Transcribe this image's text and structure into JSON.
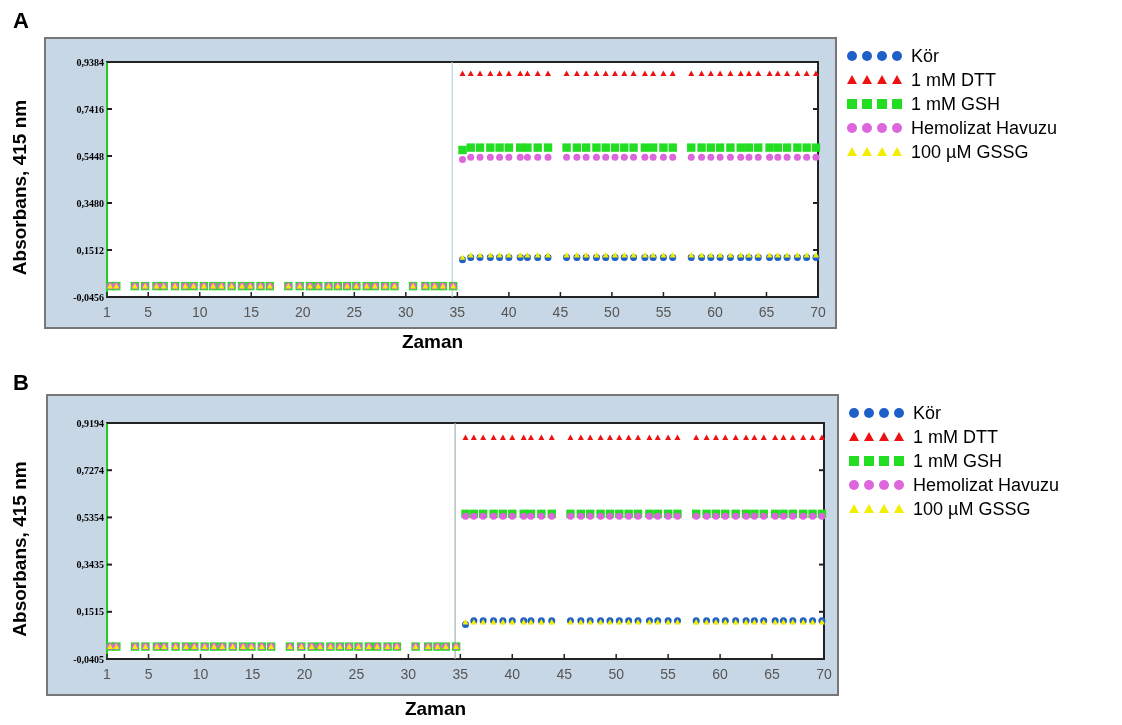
{
  "chart_data": [
    {
      "type": "scatter",
      "title": "A",
      "xlabel": "Zaman",
      "ylabel": "Absorbans, 415 nm",
      "legend": "right",
      "x": [
        1.3,
        1.9,
        3.7,
        4.7,
        5.8,
        6.5,
        7.6,
        8.6,
        9.4,
        10.4,
        11.3,
        12.1,
        13.1,
        14.1,
        14.9,
        15.9,
        16.8,
        18.6,
        19.7,
        20.7,
        21.5,
        22.5,
        23.4,
        24.3,
        25.2,
        26.2,
        27.0,
        28.0,
        28.9,
        30.7,
        31.9,
        32.8,
        33.6,
        34.6,
        35.5,
        36.3,
        37.2,
        38.2,
        39.1,
        40.0,
        41.1,
        41.8,
        42.8,
        43.8,
        45.6,
        46.6,
        47.5,
        48.5,
        49.4,
        50.3,
        51.2,
        52.1,
        53.2,
        54.0,
        55.0,
        55.9,
        57.7,
        58.7,
        59.6,
        60.5,
        61.5,
        62.5,
        63.3,
        64.2,
        65.3,
        66.1,
        67.0,
        68.0,
        68.9,
        69.8
      ],
      "xlim": [
        1,
        70
      ],
      "xticks": [
        1,
        5,
        10,
        15,
        20,
        25,
        30,
        35,
        40,
        45,
        50,
        55,
        60,
        65,
        70
      ],
      "ylim": [
        -0.0456,
        0.9384
      ],
      "yticks": [
        {
          "value": -0.0456,
          "label": "-0,0456"
        },
        {
          "value": 0.1512,
          "label": "0,1512"
        },
        {
          "value": 0.348,
          "label": "0,3480"
        },
        {
          "value": 0.5448,
          "label": "0,5448"
        },
        {
          "value": 0.7416,
          "label": "0,7416"
        },
        {
          "value": 0.9384,
          "label": "0,9384"
        }
      ],
      "ref_lines": [
        {
          "axis": "x",
          "value": 34.5,
          "color": "#b8d4dc"
        }
      ],
      "series": [
        {
          "name": "Kör",
          "color": "#1f5fc8",
          "marker": "circle",
          "values": [
            null,
            null,
            null,
            null,
            null,
            null,
            null,
            null,
            null,
            null,
            null,
            null,
            null,
            null,
            null,
            null,
            null,
            null,
            null,
            null,
            null,
            null,
            null,
            null,
            null,
            null,
            null,
            null,
            null,
            null,
            null,
            null,
            null,
            null,
            0.11,
            0.12,
            0.12,
            0.12,
            0.12,
            0.12,
            0.12,
            0.12,
            0.12,
            0.12,
            0.12,
            0.12,
            0.12,
            0.12,
            0.12,
            0.12,
            0.12,
            0.12,
            0.12,
            0.12,
            0.12,
            0.12,
            0.12,
            0.12,
            0.12,
            0.12,
            0.12,
            0.12,
            0.12,
            0.12,
            0.12,
            0.12,
            0.12,
            0.12,
            0.12,
            0.12
          ]
        },
        {
          "name": "1 mM DTT",
          "color": "#ee1111",
          "marker": "triangle",
          "values": [
            null,
            null,
            null,
            null,
            null,
            null,
            null,
            null,
            null,
            null,
            null,
            null,
            null,
            null,
            null,
            null,
            null,
            null,
            null,
            null,
            null,
            null,
            null,
            null,
            null,
            null,
            null,
            null,
            null,
            null,
            null,
            null,
            null,
            null,
            0.89,
            0.89,
            0.89,
            0.89,
            0.89,
            0.89,
            0.89,
            0.89,
            0.89,
            0.89,
            0.89,
            0.89,
            0.89,
            0.89,
            0.89,
            0.89,
            0.89,
            0.89,
            0.89,
            0.89,
            0.89,
            0.89,
            0.89,
            0.89,
            0.89,
            0.89,
            0.89,
            0.89,
            0.89,
            0.89,
            0.89,
            0.89,
            0.89,
            0.89,
            0.89,
            0.89
          ]
        },
        {
          "name": "1 mM GSH",
          "color": "#22dd22",
          "marker": "square",
          "values": [
            0,
            0,
            0,
            0,
            0,
            0,
            0,
            0,
            0,
            0,
            0,
            0,
            0,
            0,
            0,
            0,
            0,
            0,
            0,
            0,
            0,
            0,
            0,
            0,
            0,
            0,
            0,
            0,
            0,
            0,
            0,
            0,
            0,
            0,
            0.57,
            0.58,
            0.58,
            0.58,
            0.58,
            0.58,
            0.58,
            0.58,
            0.58,
            0.58,
            0.58,
            0.58,
            0.58,
            0.58,
            0.58,
            0.58,
            0.58,
            0.58,
            0.58,
            0.58,
            0.58,
            0.58,
            0.58,
            0.58,
            0.58,
            0.58,
            0.58,
            0.58,
            0.58,
            0.58,
            0.58,
            0.58,
            0.58,
            0.58,
            0.58,
            0.58
          ]
        },
        {
          "name": "Hemolizat Havuzu",
          "color": "#dd66dd",
          "marker": "circle",
          "values": [
            0,
            0,
            0,
            0,
            0,
            0,
            0,
            0,
            0,
            0,
            0,
            0,
            0,
            0,
            0,
            0,
            0,
            0,
            0,
            0,
            0,
            0,
            0,
            0,
            0,
            0,
            0,
            0,
            0,
            0,
            0,
            0,
            0,
            0,
            0.53,
            0.54,
            0.54,
            0.54,
            0.54,
            0.54,
            0.54,
            0.54,
            0.54,
            0.54,
            0.54,
            0.54,
            0.54,
            0.54,
            0.54,
            0.54,
            0.54,
            0.54,
            0.54,
            0.54,
            0.54,
            0.54,
            0.54,
            0.54,
            0.54,
            0.54,
            0.54,
            0.54,
            0.54,
            0.54,
            0.54,
            0.54,
            0.54,
            0.54,
            0.54,
            0.54
          ]
        },
        {
          "name": "100 µM GSSG",
          "color": "#f2ee00",
          "marker": "triangle",
          "values": [
            0,
            0,
            0,
            0,
            0,
            0,
            0,
            0,
            0,
            0,
            0,
            0,
            0,
            0,
            0,
            0,
            0,
            0,
            0,
            0,
            0,
            0,
            0,
            0,
            0,
            0,
            0,
            0,
            0,
            0,
            0,
            0,
            0,
            0,
            0.12,
            0.13,
            0.13,
            0.13,
            0.13,
            0.13,
            0.13,
            0.13,
            0.13,
            0.13,
            0.13,
            0.13,
            0.13,
            0.13,
            0.13,
            0.13,
            0.13,
            0.13,
            0.13,
            0.13,
            0.13,
            0.13,
            0.13,
            0.13,
            0.13,
            0.13,
            0.13,
            0.13,
            0.13,
            0.13,
            0.13,
            0.13,
            0.13,
            0.13,
            0.13,
            0.13
          ]
        }
      ]
    },
    {
      "type": "scatter",
      "title": "B",
      "xlabel": "Zaman",
      "ylabel": "Absorbans, 415 nm",
      "legend": "right",
      "x": [
        1.3,
        1.9,
        3.7,
        4.7,
        5.8,
        6.5,
        7.6,
        8.6,
        9.4,
        10.4,
        11.3,
        12.1,
        13.1,
        14.1,
        14.9,
        15.9,
        16.8,
        18.6,
        19.7,
        20.7,
        21.5,
        22.5,
        23.4,
        24.3,
        25.2,
        26.2,
        27.0,
        28.0,
        28.9,
        30.7,
        31.9,
        32.8,
        33.6,
        34.6,
        35.5,
        36.3,
        37.2,
        38.2,
        39.1,
        40.0,
        41.1,
        41.8,
        42.8,
        43.8,
        45.6,
        46.6,
        47.5,
        48.5,
        49.4,
        50.3,
        51.2,
        52.1,
        53.2,
        54.0,
        55.0,
        55.9,
        57.7,
        58.7,
        59.6,
        60.5,
        61.5,
        62.5,
        63.3,
        64.2,
        65.3,
        66.1,
        67.0,
        68.0,
        68.9,
        69.8
      ],
      "xlim": [
        1,
        70
      ],
      "xticks": [
        1,
        5,
        10,
        15,
        20,
        25,
        30,
        35,
        40,
        45,
        50,
        55,
        60,
        65,
        70
      ],
      "ylim": [
        -0.0405,
        0.9194
      ],
      "yticks": [
        {
          "value": -0.0405,
          "label": "-0,0405"
        },
        {
          "value": 0.1515,
          "label": "0,1515"
        },
        {
          "value": 0.3435,
          "label": "0,3435"
        },
        {
          "value": 0.5354,
          "label": "0,5354"
        },
        {
          "value": 0.7274,
          "label": "0,7274"
        },
        {
          "value": 0.9194,
          "label": "0,9194"
        }
      ],
      "ref_lines": [
        {
          "axis": "x",
          "value": 34.5,
          "color": "#a0b4b4"
        }
      ],
      "series": [
        {
          "name": "Kör",
          "color": "#1f5fc8",
          "marker": "circle",
          "values": [
            null,
            null,
            null,
            null,
            null,
            null,
            null,
            null,
            null,
            null,
            null,
            null,
            null,
            null,
            null,
            null,
            null,
            null,
            null,
            null,
            null,
            null,
            null,
            null,
            null,
            null,
            null,
            null,
            null,
            null,
            null,
            null,
            null,
            null,
            0.1,
            0.115,
            0.115,
            0.115,
            0.115,
            0.115,
            0.115,
            0.115,
            0.115,
            0.115,
            0.115,
            0.115,
            0.115,
            0.115,
            0.115,
            0.115,
            0.115,
            0.115,
            0.115,
            0.115,
            0.115,
            0.115,
            0.115,
            0.115,
            0.115,
            0.115,
            0.115,
            0.115,
            0.115,
            0.115,
            0.115,
            0.115,
            0.115,
            0.115,
            0.115,
            0.115
          ]
        },
        {
          "name": "1 mM DTT",
          "color": "#ee1111",
          "marker": "triangle",
          "values": [
            null,
            null,
            null,
            null,
            null,
            null,
            null,
            null,
            null,
            null,
            null,
            null,
            null,
            null,
            null,
            null,
            null,
            null,
            null,
            null,
            null,
            null,
            null,
            null,
            null,
            null,
            null,
            null,
            null,
            null,
            null,
            null,
            null,
            null,
            0.86,
            0.86,
            0.86,
            0.86,
            0.86,
            0.86,
            0.86,
            0.86,
            0.86,
            0.86,
            0.86,
            0.86,
            0.86,
            0.86,
            0.86,
            0.86,
            0.86,
            0.86,
            0.86,
            0.86,
            0.86,
            0.86,
            0.86,
            0.86,
            0.86,
            0.86,
            0.86,
            0.86,
            0.86,
            0.86,
            0.86,
            0.86,
            0.86,
            0.86,
            0.86,
            0.86
          ]
        },
        {
          "name": "1 mM GSH",
          "color": "#22dd22",
          "marker": "square",
          "values": [
            0.01,
            0.01,
            0.01,
            0.01,
            0.01,
            0.01,
            0.01,
            0.01,
            0.01,
            0.01,
            0.01,
            0.01,
            0.01,
            0.01,
            0.01,
            0.01,
            0.01,
            0.01,
            0.01,
            0.01,
            0.01,
            0.01,
            0.01,
            0.01,
            0.01,
            0.01,
            0.01,
            0.01,
            0.01,
            0.01,
            0.01,
            0.01,
            0.01,
            0.01,
            0.55,
            0.55,
            0.55,
            0.55,
            0.55,
            0.55,
            0.55,
            0.55,
            0.55,
            0.55,
            0.55,
            0.55,
            0.55,
            0.55,
            0.55,
            0.55,
            0.55,
            0.55,
            0.55,
            0.55,
            0.55,
            0.55,
            0.55,
            0.55,
            0.55,
            0.55,
            0.55,
            0.55,
            0.55,
            0.55,
            0.55,
            0.55,
            0.55,
            0.55,
            0.55,
            0.55
          ]
        },
        {
          "name": "Hemolizat Havuzu",
          "color": "#dd66dd",
          "marker": "circle",
          "values": [
            0.01,
            0.01,
            0.01,
            0.01,
            0.01,
            0.01,
            0.01,
            0.01,
            0.01,
            0.01,
            0.01,
            0.01,
            0.01,
            0.01,
            0.01,
            0.01,
            0.01,
            0.01,
            0.01,
            0.01,
            0.01,
            0.01,
            0.01,
            0.01,
            0.01,
            0.01,
            0.01,
            0.01,
            0.01,
            0.01,
            0.01,
            0.01,
            0.01,
            0.01,
            0.54,
            0.54,
            0.54,
            0.54,
            0.54,
            0.54,
            0.54,
            0.54,
            0.54,
            0.54,
            0.54,
            0.54,
            0.54,
            0.54,
            0.54,
            0.54,
            0.54,
            0.54,
            0.54,
            0.54,
            0.54,
            0.54,
            0.54,
            0.54,
            0.54,
            0.54,
            0.54,
            0.54,
            0.54,
            0.54,
            0.54,
            0.54,
            0.54,
            0.54,
            0.54,
            0.54
          ]
        },
        {
          "name": "100 µM GSSG",
          "color": "#f2ee00",
          "marker": "triangle",
          "values": [
            0.01,
            0.01,
            0.01,
            0.01,
            0.01,
            0.01,
            0.01,
            0.01,
            0.01,
            0.01,
            0.01,
            0.01,
            0.01,
            0.01,
            0.01,
            0.01,
            0.01,
            0.01,
            0.01,
            0.01,
            0.01,
            0.01,
            0.01,
            0.01,
            0.01,
            0.01,
            0.01,
            0.01,
            0.01,
            0.01,
            0.01,
            0.01,
            0.01,
            0.01,
            0.11,
            0.11,
            0.11,
            0.11,
            0.11,
            0.11,
            0.11,
            0.11,
            0.11,
            0.11,
            0.11,
            0.11,
            0.11,
            0.11,
            0.11,
            0.11,
            0.11,
            0.11,
            0.11,
            0.11,
            0.11,
            0.11,
            0.11,
            0.11,
            0.11,
            0.11,
            0.11,
            0.11,
            0.11,
            0.11,
            0.11,
            0.11,
            0.11,
            0.11,
            0.11,
            0.11
          ]
        }
      ]
    }
  ]
}
